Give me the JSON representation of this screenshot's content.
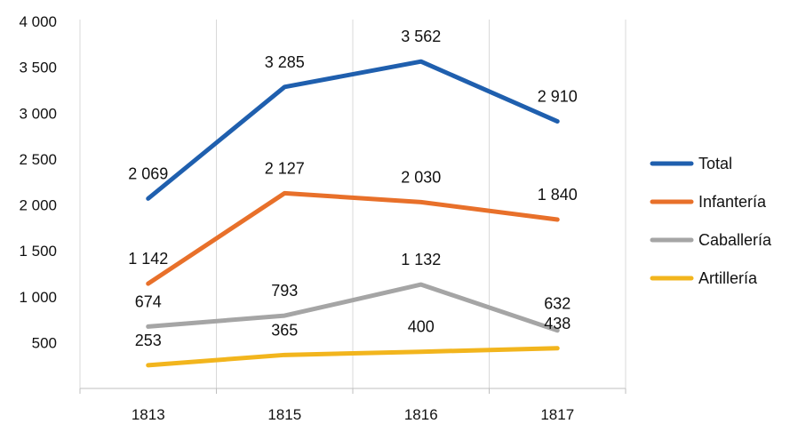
{
  "chart_data": {
    "type": "line",
    "categories": [
      "1813",
      "1815",
      "1816",
      "1817"
    ],
    "y_tick_labels": [
      "500",
      "1 000",
      "1 500",
      "2 000",
      "2 500",
      "3 000",
      "3 500",
      "4 000"
    ],
    "y_ticks": [
      500,
      1000,
      1500,
      2000,
      2500,
      3000,
      3500,
      4000
    ],
    "ylim": [
      0,
      4000
    ],
    "grid": "vertical",
    "legend_position": "right",
    "series": [
      {
        "name": "Total",
        "color": "#1f5fae",
        "values": [
          2069,
          3285,
          3562,
          2910
        ],
        "labels": [
          "2 069",
          "3 285",
          "3 562",
          "2 910"
        ]
      },
      {
        "name": "Infantería",
        "color": "#e8702a",
        "values": [
          1142,
          2127,
          2030,
          1840
        ],
        "labels": [
          "1 142",
          "2 127",
          "2 030",
          "1 840"
        ]
      },
      {
        "name": "Caballería",
        "color": "#a5a5a5",
        "values": [
          674,
          793,
          1132,
          632
        ],
        "labels": [
          "674",
          "793",
          "1 132",
          "632"
        ]
      },
      {
        "name": "Artillería",
        "color": "#f2b51d",
        "values": [
          253,
          365,
          400,
          438
        ],
        "labels": [
          "253",
          "365",
          "400",
          "438"
        ]
      }
    ]
  }
}
